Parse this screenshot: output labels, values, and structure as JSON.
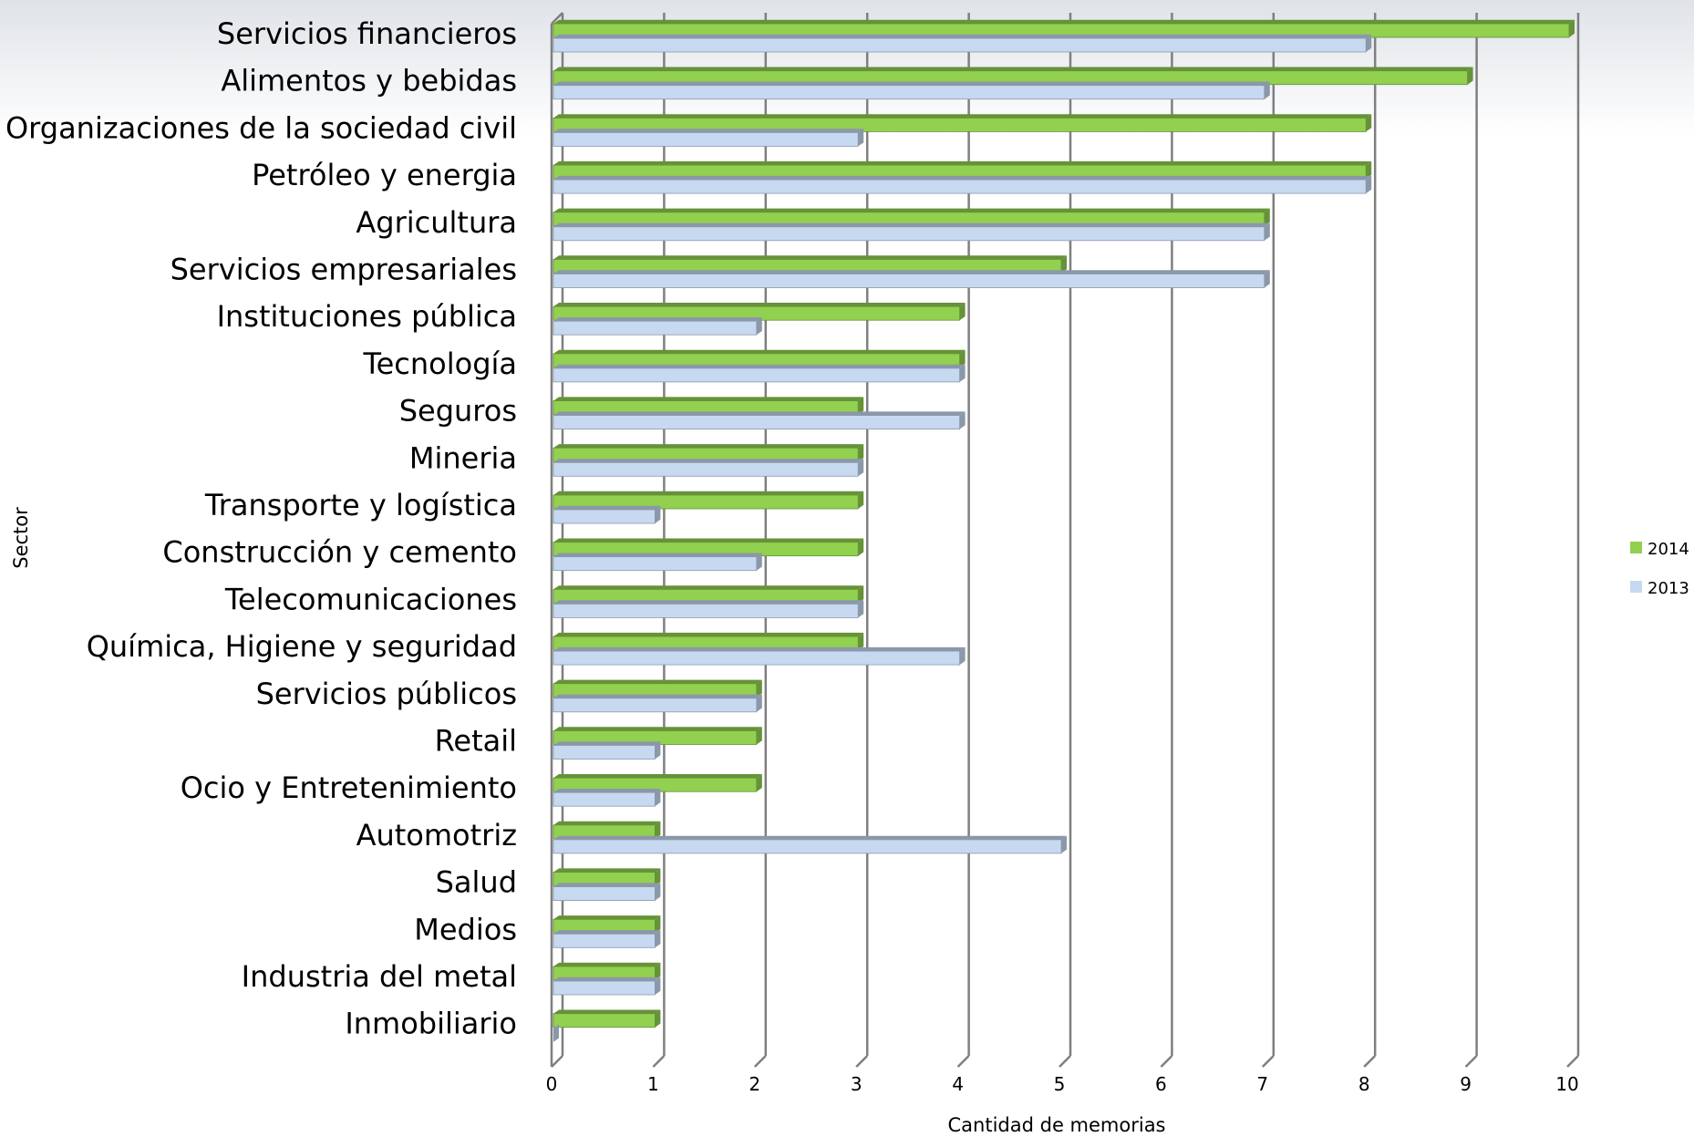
{
  "chart_data": {
    "type": "bar",
    "orientation": "horizontal",
    "title": "",
    "xlabel": "Cantidad de memorias",
    "ylabel": "Sector",
    "xlim": [
      0,
      10
    ],
    "xticks": [
      "0",
      "1",
      "2",
      "3",
      "4",
      "5",
      "6",
      "7",
      "8",
      "9",
      "10"
    ],
    "grid": "vertical",
    "legend_position": "right",
    "categories": [
      "Servicios financieros",
      "Alimentos y bebidas",
      "Organizaciones de la sociedad civil",
      "Petróleo y energia",
      "Agricultura",
      "Servicios empresariales",
      "Instituciones pública",
      "Tecnología",
      "Seguros",
      "Mineria",
      "Transporte y logística",
      "Construcción y cemento",
      "Telecomunicaciones",
      "Química, Higiene y seguridad",
      "Servicios públicos",
      "Retail",
      "Ocio y Entretenimiento",
      "Automotriz",
      "Salud",
      "Medios",
      "Industria del metal",
      "Inmobiliario"
    ],
    "series": [
      {
        "name": "2014",
        "color": "#92d050",
        "values": [
          10,
          9,
          8,
          8,
          7,
          5,
          4,
          4,
          3,
          3,
          3,
          3,
          3,
          3,
          2,
          2,
          2,
          1,
          1,
          1,
          1,
          1
        ]
      },
      {
        "name": "2013",
        "color": "#c6d9f1",
        "values": [
          8,
          7,
          3,
          8,
          7,
          7,
          2,
          4,
          4,
          3,
          1,
          2,
          3,
          4,
          2,
          1,
          1,
          5,
          1,
          1,
          1,
          0
        ]
      }
    ]
  }
}
